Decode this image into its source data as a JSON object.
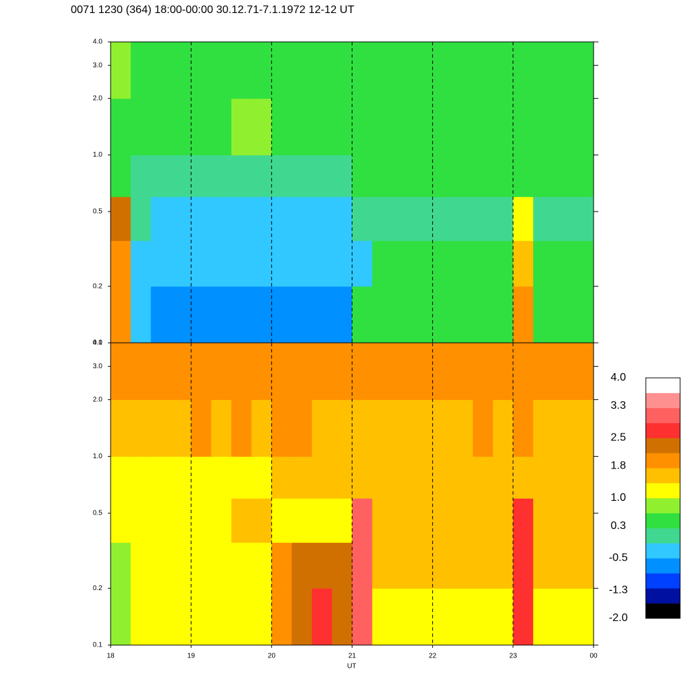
{
  "chart_data": [
    {
      "type": "heatmap",
      "title": "0071 1230 (364) 18:00-00:00 30.12.71-7.1.1972  12-12 UT",
      "xlim": [
        18,
        24
      ],
      "xticks": [
        18,
        19,
        20,
        21,
        22,
        23,
        24
      ],
      "ylim": [
        0.1,
        4
      ],
      "yscale": "log",
      "yticks": [
        0.1,
        0.2,
        0.5,
        {
          "value": 1,
          "label": "1.0"
        },
        {
          "value": 2,
          "label": "2.0"
        },
        {
          "value": 3,
          "label": "3.0"
        },
        {
          "value": 4,
          "label": "4.0"
        }
      ],
      "x_bins": [
        18,
        18.25,
        18.5,
        18.75,
        19,
        19.25,
        19.5,
        19.75,
        20,
        20.25,
        20.5,
        20.75,
        21,
        21.25,
        21.5,
        21.75,
        22,
        22.25,
        22.5,
        22.75,
        23,
        23.25,
        23.5,
        23.75,
        24
      ],
      "y_bins": [
        0.1,
        0.2,
        0.35,
        0.6,
        1,
        2,
        4
      ],
      "values": [
        [
          1.9,
          -0.3,
          -0.7,
          -0.7,
          -0.7,
          -0.7,
          -0.7,
          -0.7,
          -0.7,
          -0.7,
          -0.7,
          -0.6,
          0.4,
          0.4,
          0.4,
          0.4,
          0.4,
          0.4,
          0.4,
          0.4,
          1.9,
          0.4,
          0.4,
          0.4
        ],
        [
          1.9,
          -0.3,
          -0.5,
          -0.5,
          -0.5,
          -0.5,
          -0.5,
          -0.5,
          -0.5,
          -0.5,
          -0.5,
          -0.5,
          -0.3,
          0.3,
          0.3,
          0.3,
          0.3,
          0.3,
          0.3,
          0.3,
          1.5,
          0.3,
          0.3,
          0.3
        ],
        [
          2.3,
          0,
          -0.3,
          -0.3,
          -0.3,
          -0.3,
          -0.3,
          -0.3,
          -0.3,
          -0.3,
          -0.3,
          -0.3,
          0.1,
          0.1,
          0.1,
          0.1,
          0.1,
          0.1,
          0.1,
          0.1,
          1.0,
          0.1,
          0.1,
          0.1
        ],
        [
          0.5,
          0,
          0,
          0,
          0,
          0,
          0,
          0,
          0,
          0,
          0,
          0,
          0.3,
          0.3,
          0.3,
          0.3,
          0.3,
          0.3,
          0.3,
          0.3,
          0.3,
          0.3,
          0.3,
          0.3
        ],
        [
          0.5,
          0.4,
          0.3,
          0.3,
          0.4,
          0.5,
          0.7,
          0.7,
          0.5,
          0.6,
          0.6,
          0.5,
          0.4,
          0.4,
          0.4,
          0.4,
          0.4,
          0.4,
          0.4,
          0.4,
          0.4,
          0.4,
          0.4,
          0.5
        ],
        [
          0.7,
          0.6,
          0.6,
          0.6,
          0.6,
          0.6,
          0.6,
          0.6,
          0.6,
          0.6,
          0.6,
          0.6,
          0.6,
          0.6,
          0.6,
          0.6,
          0.6,
          0.6,
          0.6,
          0.6,
          0.6,
          0.6,
          0.6,
          0.6
        ]
      ]
    },
    {
      "type": "heatmap",
      "xlabel": "UT",
      "xlim": [
        18,
        24
      ],
      "xticks": [
        18,
        19,
        20,
        21,
        22,
        23,
        {
          "value": 24,
          "label": "00"
        }
      ],
      "ylim": [
        0.1,
        4
      ],
      "yscale": "log",
      "yticks": [
        0.1,
        0.2,
        0.5,
        {
          "value": 1,
          "label": "1.0"
        },
        {
          "value": 2,
          "label": "2.0"
        },
        {
          "value": 3,
          "label": "3.0"
        },
        {
          "value": 4,
          "label": "4.0"
        }
      ],
      "x_bins": [
        18,
        18.25,
        18.5,
        18.75,
        19,
        19.25,
        19.5,
        19.75,
        20,
        20.25,
        20.5,
        20.75,
        21,
        21.25,
        21.5,
        21.75,
        22,
        22.25,
        22.5,
        22.75,
        23,
        23.25,
        23.5,
        23.75,
        24
      ],
      "y_bins": [
        0.1,
        0.2,
        0.35,
        0.6,
        1,
        2,
        4
      ],
      "values": [
        [
          0.8,
          1.0,
          1.0,
          1.0,
          1.0,
          1.0,
          1.0,
          1.0,
          2.0,
          2.3,
          2.7,
          2.4,
          2.9,
          1.1,
          1.1,
          1.1,
          1.1,
          1.1,
          1.1,
          1.1,
          2.7,
          1.2,
          1.2,
          1.2
        ],
        [
          0.8,
          1.1,
          1.1,
          1.1,
          1.1,
          1.1,
          1.1,
          1.1,
          1.8,
          2.3,
          2.3,
          2.3,
          2.9,
          1.5,
          1.5,
          1.5,
          1.5,
          1.5,
          1.5,
          1.5,
          2.7,
          1.6,
          1.6,
          1.6
        ],
        [
          1.0,
          1.0,
          1.0,
          1.0,
          1.0,
          1.0,
          1.6,
          1.6,
          1.2,
          1.2,
          1.2,
          1.2,
          3.0,
          1.4,
          1.4,
          1.4,
          1.4,
          1.4,
          1.4,
          1.4,
          2.5,
          1.5,
          1.5,
          1.5
        ],
        [
          1.1,
          1.1,
          1.1,
          1.1,
          1.1,
          1.1,
          1.1,
          1.1,
          1.5,
          1.5,
          1.5,
          1.5,
          1.4,
          1.4,
          1.4,
          1.5,
          1.5,
          1.6,
          1.6,
          1.5,
          1.5,
          1.4,
          1.4,
          1.5
        ],
        [
          1.7,
          1.6,
          1.7,
          1.7,
          1.8,
          1.7,
          1.8,
          1.7,
          1.8,
          1.8,
          1.7,
          1.7,
          1.6,
          1.7,
          1.7,
          1.7,
          1.7,
          1.7,
          1.8,
          1.7,
          1.8,
          1.7,
          1.7,
          1.7
        ],
        [
          1.9,
          1.9,
          1.9,
          1.9,
          1.9,
          1.9,
          1.9,
          1.9,
          1.9,
          1.9,
          1.9,
          1.9,
          1.9,
          1.9,
          1.9,
          1.9,
          1.9,
          1.9,
          1.9,
          1.9,
          1.9,
          1.9,
          1.9,
          1.9
        ]
      ],
      "colorbar": {
        "range": [
          -2,
          4
        ],
        "colors": [
          "#000000",
          "#0010a0",
          "#0040ff",
          "#0090ff",
          "#30c8ff",
          "#40d890",
          "#30e040",
          "#90f030",
          "#ffff00",
          "#ffc000",
          "#ff9000",
          "#d07000",
          "#ff3030",
          "#ff6060",
          "#ff9090",
          "#ffffff"
        ],
        "ticks": [
          {
            "value": 4,
            "label": "4.0"
          },
          3.3,
          2.5,
          1.8,
          {
            "value": 1,
            "label": "1.0"
          },
          0.3,
          -0.5,
          -1.3,
          {
            "value": -2,
            "label": "-2.0"
          }
        ]
      }
    }
  ]
}
